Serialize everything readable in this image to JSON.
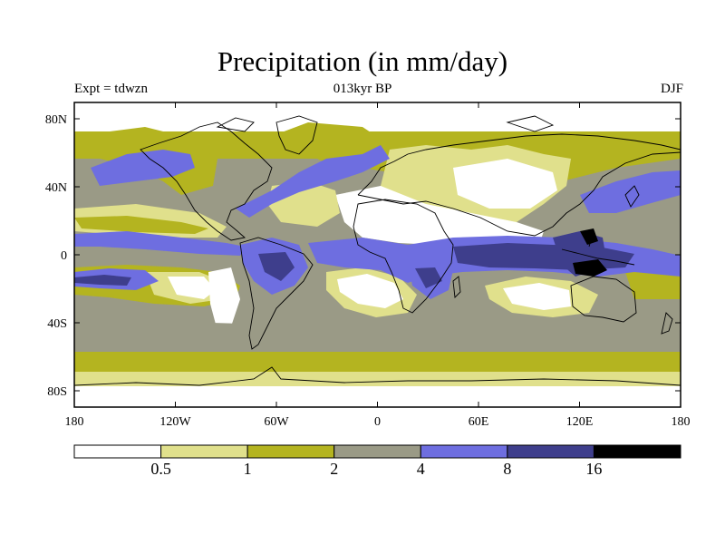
{
  "title": "Precipitation (in mm/day)",
  "subtitle_left": "Expt = tdwzn",
  "subtitle_center": "013kyr BP",
  "subtitle_right": "DJF",
  "lon_ticks": [
    "180",
    "120W",
    "60W",
    "0",
    "60E",
    "120E",
    "180"
  ],
  "lat_ticks": [
    "80N",
    "40N",
    "0",
    "40S",
    "80S"
  ],
  "colorbar": {
    "colors": [
      "#ffffff",
      "#e0e08c",
      "#b4b420",
      "#9a9a86",
      "#6e6ee0",
      "#3e3e8c",
      "#000000"
    ],
    "labels": [
      "0.5",
      "1",
      "2",
      "4",
      "8",
      "16"
    ]
  }
}
